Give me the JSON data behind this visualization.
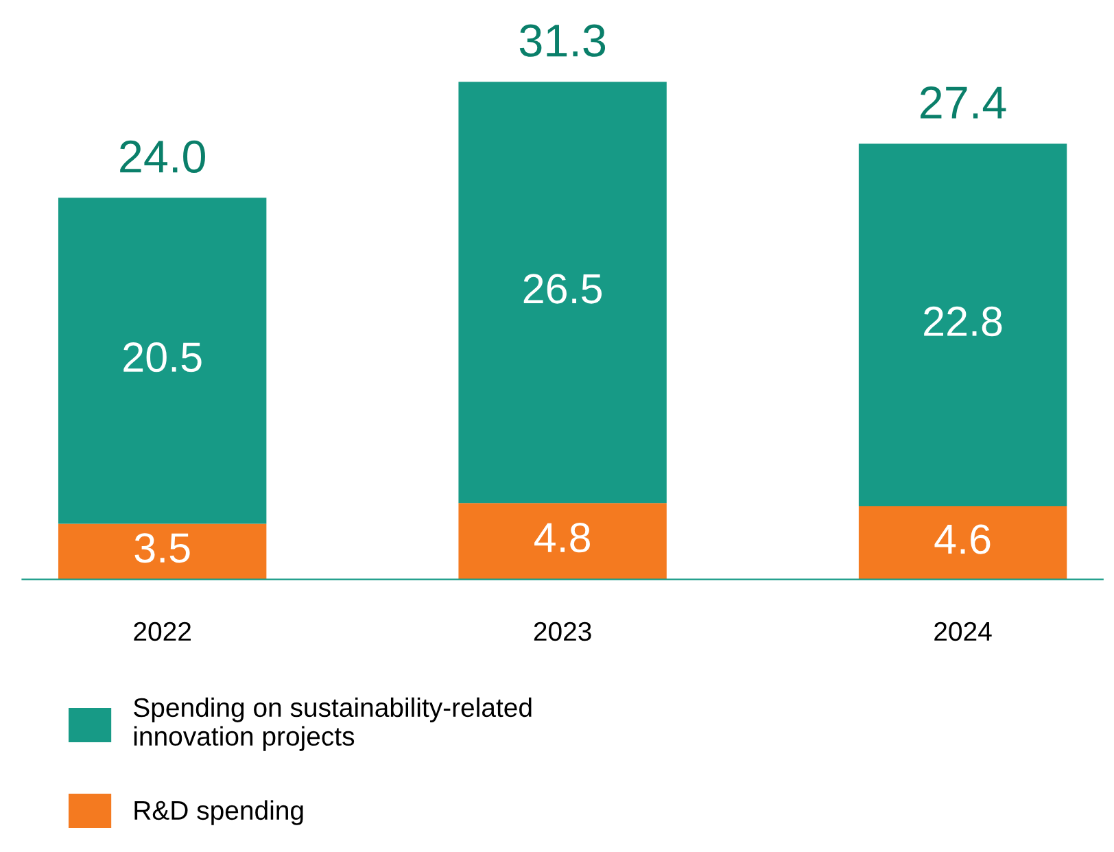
{
  "chart_data": {
    "type": "bar",
    "stacked": true,
    "categories": [
      "2022",
      "2023",
      "2024"
    ],
    "series": [
      {
        "name": "R&D spending",
        "color": "#f47a20",
        "values": [
          3.5,
          4.8,
          4.6
        ]
      },
      {
        "name": "Spending on sustainability-related\ninnovation projects",
        "color": "#179a86",
        "values": [
          20.5,
          26.5,
          22.8
        ]
      }
    ],
    "data_labels": true,
    "totals": [
      "24.0",
      "31.3",
      "27.4"
    ],
    "legend": "bottom",
    "grid": false
  }
}
